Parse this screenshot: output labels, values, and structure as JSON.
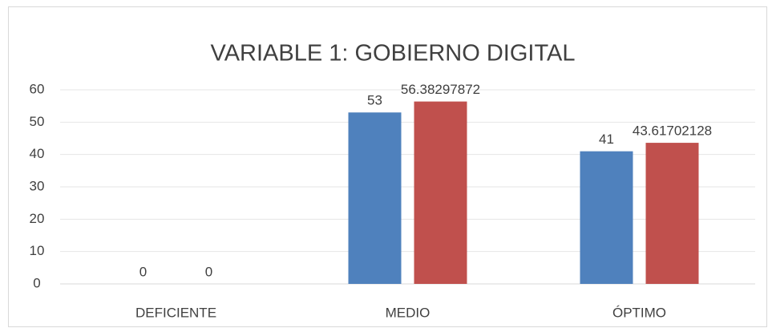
{
  "chart_data": {
    "type": "bar",
    "title": "VARIABLE 1: GOBIERNO DIGITAL",
    "categories": [
      "DEFICIENTE",
      "MEDIO",
      "ÓPTIMO"
    ],
    "series": [
      {
        "color": "#4f81bd",
        "values": [
          0,
          53,
          41
        ]
      },
      {
        "color": "#c0504d",
        "values": [
          0,
          56.38297872,
          43.61702128
        ]
      }
    ],
    "ylim": [
      0,
      60
    ],
    "yticks": [
      0,
      10,
      20,
      30,
      40,
      50,
      60
    ],
    "grid": true
  }
}
